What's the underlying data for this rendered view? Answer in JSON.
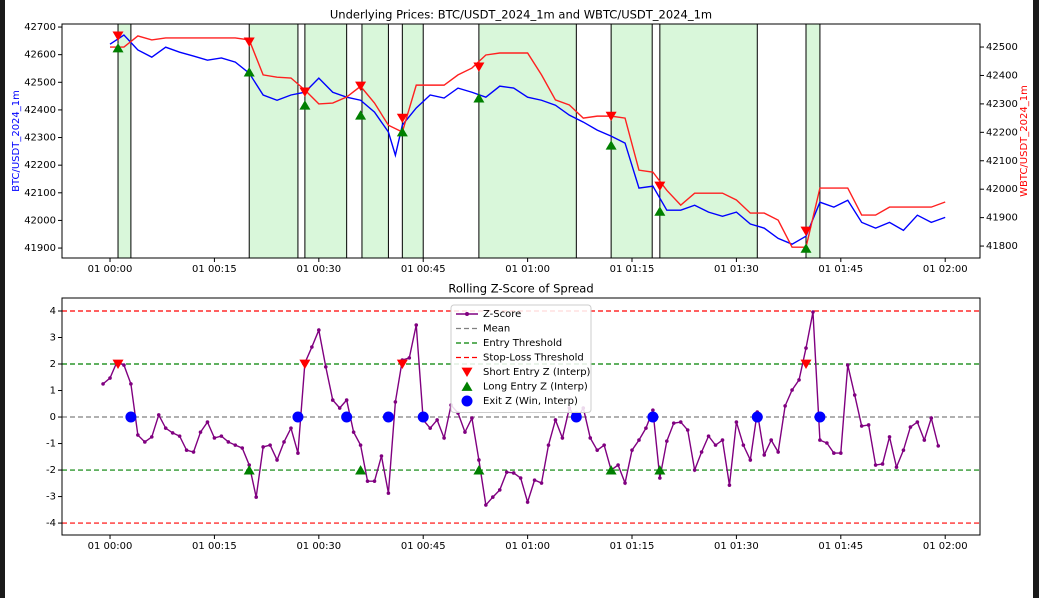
{
  "chart_data": [
    {
      "type": "line",
      "title": "Underlying Prices: BTC/USDT_2024_1m and WBTC/USDT_2024_1m",
      "ylabel": "BTC/USDT_2024_1m",
      "ylabel_color": "#0000ff",
      "y2label": "WBTC/USDT_2024_1m",
      "y2label_color": "#ff0000",
      "xlim": [
        -6.9,
        125
      ],
      "ylim": [
        41864,
        42711
      ],
      "y2lim": [
        41758,
        42581
      ],
      "xticks": [
        {
          "value": 0,
          "label": "01 00:00"
        },
        {
          "value": 15,
          "label": "01 00:15"
        },
        {
          "value": 30,
          "label": "01 00:30"
        },
        {
          "value": 45,
          "label": "01 00:45"
        },
        {
          "value": 60,
          "label": "01 01:00"
        },
        {
          "value": 75,
          "label": "01 01:15"
        },
        {
          "value": 90,
          "label": "01 01:30"
        },
        {
          "value": 105,
          "label": "01 01:45"
        },
        {
          "value": 120,
          "label": "01 02:00"
        }
      ],
      "yticks": [
        41900,
        42000,
        42100,
        42200,
        42300,
        42400,
        42500,
        42600,
        42700
      ],
      "y2ticks": [
        41800,
        41900,
        42000,
        42100,
        42200,
        42300,
        42400,
        42500
      ],
      "spans": [
        [
          1.15,
          3.0
        ],
        [
          20,
          27
        ],
        [
          28,
          34
        ],
        [
          36.2,
          40
        ],
        [
          42,
          45
        ],
        [
          53,
          67
        ],
        [
          72,
          77.9
        ],
        [
          79,
          93
        ],
        [
          100,
          102
        ]
      ],
      "span_color": "#d9f7da",
      "span_edge_color": "#000000",
      "legend": false,
      "series": [
        {
          "name": "BTC/USDT_2024_1m",
          "kind": "line",
          "color": "#0000ff",
          "x": [
            0,
            2,
            4,
            6,
            8,
            10,
            12,
            14,
            16,
            18,
            20,
            22,
            24,
            26,
            28,
            30,
            32,
            34,
            36,
            38,
            40,
            41,
            42,
            44,
            46,
            48,
            50,
            52,
            54,
            56,
            58,
            60,
            62,
            64,
            66,
            68,
            70,
            72,
            74,
            76,
            78,
            80,
            82,
            84,
            86,
            88,
            90,
            92,
            94,
            96,
            98,
            100,
            102,
            104,
            106,
            108,
            110,
            112,
            114,
            116,
            118,
            120
          ],
          "values": [
            42638,
            42671,
            42617,
            42591,
            42627,
            42609,
            42595,
            42580,
            42588,
            42573,
            42533,
            42454,
            42435,
            42454,
            42464,
            42515,
            42464,
            42446,
            42435,
            42392,
            42320,
            42236,
            42345,
            42407,
            42454,
            42443,
            42479,
            42464,
            42446,
            42486,
            42479,
            42446,
            42435,
            42417,
            42381,
            42356,
            42327,
            42305,
            42280,
            42117,
            42124,
            42037,
            42037,
            42055,
            42030,
            42015,
            42030,
            41987,
            41972,
            41935,
            41914,
            41943,
            42066,
            42048,
            42073,
            41993,
            41972,
            41993,
            41964,
            42019,
            41993,
            42011
          ]
        },
        {
          "name": "WBTC/USDT_2024_1m",
          "kind": "line",
          "axis": "y2",
          "color": "#ff2020",
          "x": [
            0,
            2,
            4,
            6,
            8,
            10,
            12,
            14,
            16,
            18,
            20,
            22,
            24,
            26,
            28,
            30,
            32,
            34,
            36,
            38,
            40,
            42,
            44,
            46,
            48,
            50,
            52,
            54,
            56,
            58,
            60,
            62,
            64,
            66,
            68,
            70,
            72,
            74,
            76,
            78,
            80,
            82,
            84,
            86,
            88,
            90,
            92,
            94,
            96,
            98,
            100,
            102,
            104,
            106,
            108,
            110,
            112,
            114,
            116,
            118,
            120
          ],
          "values": [
            42500,
            42500,
            42539,
            42525,
            42532,
            42532,
            42532,
            42532,
            42532,
            42532,
            42525,
            42402,
            42394,
            42391,
            42349,
            42300,
            42303,
            42324,
            42362,
            42303,
            42225,
            42201,
            42366,
            42366,
            42366,
            42402,
            42426,
            42472,
            42479,
            42479,
            42479,
            42402,
            42314,
            42296,
            42250,
            42257,
            42257,
            42250,
            42067,
            42060,
            41996,
            41944,
            41986,
            41986,
            41986,
            41962,
            41916,
            41916,
            41891,
            41796,
            41796,
            42004,
            42004,
            42004,
            41909,
            41909,
            41937,
            41937,
            41937,
            41937,
            41955
          ]
        },
        {
          "name": "Short Entry",
          "kind": "scatter",
          "marker": "v",
          "axis": "y2",
          "color": "#ff0000",
          "x": [
            1.15,
            20,
            28,
            36,
            42,
            53,
            72,
            79,
            100
          ],
          "values": [
            42539,
            42518,
            42342,
            42363,
            42250,
            42430,
            42257,
            42011,
            41853
          ]
        },
        {
          "name": "Long Entry",
          "kind": "scatter",
          "marker": "^",
          "color": "#008000",
          "x": [
            1.15,
            20,
            28,
            36,
            42,
            53,
            72,
            79,
            100
          ],
          "values": [
            42624,
            42537,
            42417,
            42381,
            42320,
            42443,
            42272,
            42033,
            41899
          ]
        }
      ]
    },
    {
      "type": "line",
      "title": "Rolling Z-Score of Spread",
      "xlim": [
        -6.9,
        125
      ],
      "ylim": [
        -4.45,
        4.49
      ],
      "xticks": [
        {
          "value": 0,
          "label": "01 00:00"
        },
        {
          "value": 15,
          "label": "01 00:15"
        },
        {
          "value": 30,
          "label": "01 00:30"
        },
        {
          "value": 45,
          "label": "01 00:45"
        },
        {
          "value": 60,
          "label": "01 01:00"
        },
        {
          "value": 75,
          "label": "01 01:15"
        },
        {
          "value": 90,
          "label": "01 01:30"
        },
        {
          "value": 105,
          "label": "01 01:45"
        },
        {
          "value": 120,
          "label": "01 02:00"
        }
      ],
      "yticks": [
        -4,
        -3,
        -2,
        -1,
        0,
        1,
        2,
        3,
        4
      ],
      "legend": "upper center",
      "series": [
        {
          "name": "Z-Score",
          "kind": "line",
          "marker": "dot",
          "color": "#800080",
          "x": [
            -1,
            0,
            1,
            2,
            3,
            4,
            5,
            6,
            7,
            8,
            9,
            10,
            11,
            12,
            13,
            14,
            15,
            16,
            17,
            18,
            19,
            20,
            21,
            22,
            23,
            24,
            25,
            26,
            27,
            28,
            29,
            30,
            31,
            32,
            33,
            34,
            35,
            36,
            37,
            38,
            39,
            40,
            41,
            42,
            43,
            44,
            45,
            46,
            47,
            48,
            49,
            50,
            51,
            52,
            53,
            54,
            55,
            56,
            57,
            58,
            59,
            60,
            61,
            62,
            63,
            64,
            65,
            66,
            67,
            68,
            69,
            70,
            71,
            72,
            73,
            74,
            75,
            76,
            77,
            78,
            79,
            80,
            81,
            82,
            83,
            84,
            85,
            86,
            87,
            88,
            89,
            90,
            91,
            92,
            93,
            94,
            95,
            96,
            97,
            98,
            99,
            100,
            101,
            102,
            103,
            104,
            105,
            106,
            107,
            108,
            109,
            110,
            111,
            112,
            113,
            114,
            115,
            116,
            117,
            118,
            119
          ],
          "values": [
            1.25,
            1.47,
            2.08,
            1.96,
            1.25,
            -0.68,
            -0.94,
            -0.75,
            0.08,
            -0.42,
            -0.6,
            -0.72,
            -1.25,
            -1.32,
            -0.57,
            -0.19,
            -0.79,
            -0.72,
            -0.94,
            -1.06,
            -1.17,
            -1.81,
            -3.02,
            -1.13,
            -1.06,
            -1.62,
            -0.94,
            -0.42,
            -1.36,
            2.04,
            2.64,
            3.28,
            1.89,
            0.64,
            0.34,
            0.64,
            -0.57,
            -1.06,
            -2.42,
            -2.42,
            -1.47,
            -2.87,
            0.57,
            2.15,
            2.23,
            3.47,
            -0.11,
            -0.42,
            -0.11,
            -0.79,
            0.45,
            0.15,
            -0.57,
            -0.04,
            -1.62,
            -3.32,
            -3.02,
            -2.75,
            -2.08,
            -2.11,
            -2.3,
            -3.21,
            -2.38,
            -2.49,
            -1.06,
            -0.11,
            -0.79,
            0.34,
            -0.11,
            0.34,
            -0.79,
            -1.25,
            -1.06,
            -2.0,
            -1.81,
            -2.49,
            -1.25,
            -0.87,
            -0.42,
            0.26,
            -2.3,
            -0.91,
            -0.23,
            -0.19,
            -0.49,
            -2.0,
            -1.32,
            -0.72,
            -1.06,
            -0.87,
            -2.57,
            -0.19,
            -1.06,
            -1.62,
            0.19,
            -1.43,
            -0.87,
            -1.32,
            0.42,
            1.02,
            1.4,
            2.6,
            3.96,
            -0.87,
            -0.98,
            -1.36,
            -1.36,
            1.96,
            0.83,
            -0.34,
            -0.3,
            -1.81,
            -1.77,
            -0.75,
            -1.89,
            -1.25,
            -0.38,
            -0.19,
            -0.87,
            -0.04,
            -1.09
          ]
        },
        {
          "name": "Mean",
          "kind": "hline",
          "color": "#808080",
          "values": [
            0
          ]
        },
        {
          "name": "Entry Threshold",
          "kind": "hline",
          "color": "#008000",
          "values": [
            2,
            -2
          ]
        },
        {
          "name": "Stop-Loss Threshold",
          "kind": "hline",
          "color": "#ff0000",
          "values": [
            4,
            -4
          ]
        },
        {
          "name": "Short Entry Z (Interp)",
          "kind": "scatter",
          "marker": "v",
          "color": "#ff0000",
          "x": [
            1.15,
            28,
            42,
            100
          ],
          "values": [
            2,
            2,
            2,
            2
          ]
        },
        {
          "name": "Long Entry Z (Interp)",
          "kind": "scatter",
          "marker": "^",
          "color": "#008000",
          "x": [
            20,
            36,
            53,
            72,
            79
          ],
          "values": [
            -2,
            -2,
            -2,
            -2,
            -2
          ]
        },
        {
          "name": "Exit Z (Win, Interp)",
          "kind": "scatter",
          "marker": "o",
          "color": "#0000ff",
          "x": [
            3,
            27,
            34,
            40,
            45,
            67,
            78,
            93,
            102
          ],
          "values": [
            0,
            0,
            0,
            0,
            0,
            0,
            0,
            0,
            0
          ]
        }
      ]
    }
  ]
}
